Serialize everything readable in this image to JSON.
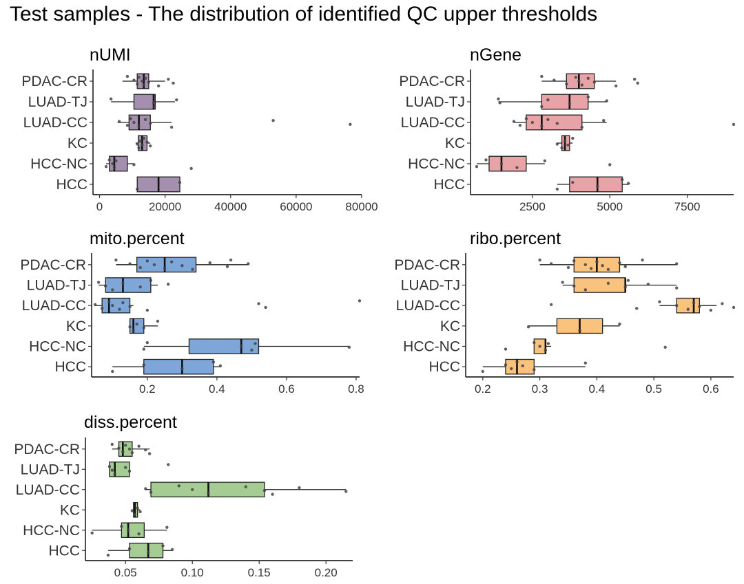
{
  "main_title": "Test samples  -  The distribution of identified QC upper thresholds",
  "categories": [
    "PDAC-CR",
    "LUAD-TJ",
    "LUAD-CC",
    "KC",
    "HCC-NC",
    "HCC"
  ],
  "chart_data": [
    {
      "type": "boxplot",
      "title": "nUMI",
      "color": "#a48fae",
      "xlim": [
        -2000,
        80000
      ],
      "ticks": [
        0,
        20000,
        40000,
        60000,
        80000
      ],
      "tick_labels": [
        "0",
        "20000",
        "40000",
        "60000",
        "80000"
      ],
      "boxes": [
        {
          "category": "PDAC-CR",
          "wmin": 7000,
          "q1": 11500,
          "median": 13500,
          "q3": 15000,
          "wmax": 20000,
          "points": [
            8500,
            10500,
            11500,
            12000,
            13000,
            13500,
            14000,
            15000,
            18000,
            21000,
            22500
          ]
        },
        {
          "category": "LUAD-TJ",
          "wmin": 3500,
          "q1": 10500,
          "median": 16500,
          "q3": 17000,
          "wmax": 23000,
          "points": [
            3500,
            16500,
            16800,
            23500
          ]
        },
        {
          "category": "LUAD-CC",
          "wmin": 5500,
          "q1": 9000,
          "median": 12000,
          "q3": 15500,
          "wmax": 22000,
          "points": [
            6000,
            8500,
            9500,
            10500,
            12000,
            14000,
            15500,
            22000,
            53000,
            76500
          ]
        },
        {
          "category": "KC",
          "wmin": 11000,
          "q1": 11800,
          "median": 13000,
          "q3": 14500,
          "wmax": 15500,
          "points": [
            11500,
            12000,
            12500,
            13000,
            13500,
            14500,
            15500
          ]
        },
        {
          "category": "HCC-NC",
          "wmin": 2000,
          "q1": 3000,
          "median": 4500,
          "q3": 8500,
          "wmax": 10500,
          "points": [
            2000,
            3000,
            4000,
            4500,
            5000,
            10500,
            28000
          ]
        },
        {
          "category": "HCC",
          "wmin": 11500,
          "q1": 11500,
          "median": 18000,
          "q3": 24500,
          "wmax": 24500,
          "points": [
            11500,
            24500
          ]
        }
      ]
    },
    {
      "type": "boxplot",
      "title": "nGene",
      "color": "#e8a3a6",
      "xlim": [
        500,
        9000
      ],
      "ticks": [
        2500,
        5000,
        7500
      ],
      "tick_labels": [
        "2500",
        "5000",
        "7500"
      ],
      "boxes": [
        {
          "category": "PDAC-CR",
          "wmin": 2800,
          "q1": 3600,
          "median": 4000,
          "q3": 4500,
          "wmax": 5200,
          "points": [
            2800,
            3200,
            3600,
            3900,
            4000,
            4100,
            4300,
            4500,
            5200,
            5800,
            5900
          ]
        },
        {
          "category": "LUAD-TJ",
          "wmin": 1400,
          "q1": 2800,
          "median": 3700,
          "q3": 4300,
          "wmax": 4900,
          "points": [
            1400,
            1450,
            2800,
            3000,
            3700,
            4300,
            4900
          ]
        },
        {
          "category": "LUAD-CC",
          "wmin": 1900,
          "q1": 2300,
          "median": 2800,
          "q3": 4100,
          "wmax": 4900,
          "points": [
            1900,
            2100,
            2300,
            2500,
            2800,
            3000,
            3300,
            4100,
            4800,
            9000
          ]
        },
        {
          "category": "KC",
          "wmin": 3300,
          "q1": 3450,
          "median": 3550,
          "q3": 3700,
          "wmax": 3800,
          "points": [
            3300,
            3450,
            3550,
            3650,
            3800
          ]
        },
        {
          "category": "HCC-NC",
          "wmin": 700,
          "q1": 1100,
          "median": 1500,
          "q3": 2300,
          "wmax": 2900,
          "points": [
            700,
            1000,
            1500,
            2000,
            2900,
            5000
          ]
        },
        {
          "category": "HCC",
          "wmin": 3300,
          "q1": 3700,
          "median": 4600,
          "q3": 5400,
          "wmax": 5600,
          "points": [
            3300,
            3800,
            4600,
            5400,
            5600
          ]
        }
      ]
    },
    {
      "type": "boxplot",
      "title": "mito.percent",
      "color": "#7fa6d9",
      "xlim": [
        0.04,
        0.81
      ],
      "ticks": [
        0.2,
        0.4,
        0.6,
        0.8
      ],
      "tick_labels": [
        "0.2",
        "0.4",
        "0.6",
        "0.8"
      ],
      "boxes": [
        {
          "category": "PDAC-CR",
          "wmin": 0.11,
          "q1": 0.17,
          "median": 0.25,
          "q3": 0.34,
          "wmax": 0.49,
          "points": [
            0.11,
            0.15,
            0.18,
            0.2,
            0.22,
            0.25,
            0.27,
            0.3,
            0.33,
            0.38,
            0.43,
            0.44,
            0.49
          ]
        },
        {
          "category": "LUAD-TJ",
          "wmin": 0.06,
          "q1": 0.08,
          "median": 0.13,
          "q3": 0.21,
          "wmax": 0.23,
          "points": [
            0.06,
            0.08,
            0.1,
            0.13,
            0.18,
            0.21,
            0.26
          ]
        },
        {
          "category": "LUAD-CC",
          "wmin": 0.05,
          "q1": 0.07,
          "median": 0.09,
          "q3": 0.15,
          "wmax": 0.16,
          "points": [
            0.05,
            0.07,
            0.09,
            0.1,
            0.12,
            0.13,
            0.15,
            0.2,
            0.52,
            0.54,
            0.81
          ]
        },
        {
          "category": "KC",
          "wmin": 0.15,
          "q1": 0.15,
          "median": 0.16,
          "q3": 0.19,
          "wmax": 0.23,
          "points": [
            0.15,
            0.16,
            0.17,
            0.19,
            0.23
          ]
        },
        {
          "category": "HCC-NC",
          "wmin": 0.19,
          "q1": 0.32,
          "median": 0.47,
          "q3": 0.52,
          "wmax": 0.78,
          "points": [
            0.19,
            0.2,
            0.47,
            0.5,
            0.51,
            0.78
          ]
        },
        {
          "category": "HCC",
          "wmin": 0.1,
          "q1": 0.19,
          "median": 0.3,
          "q3": 0.39,
          "wmax": 0.41,
          "points": [
            0.1,
            0.19,
            0.3,
            0.39,
            0.41
          ]
        }
      ]
    },
    {
      "type": "boxplot",
      "title": "ribo.percent",
      "color": "#f9c27d",
      "xlim": [
        0.17,
        0.64
      ],
      "ticks": [
        0.2,
        0.3,
        0.4,
        0.5,
        0.6
      ],
      "tick_labels": [
        "0.2",
        "0.3",
        "0.4",
        "0.5",
        "0.6"
      ],
      "boxes": [
        {
          "category": "PDAC-CR",
          "wmin": 0.3,
          "q1": 0.36,
          "median": 0.4,
          "q3": 0.44,
          "wmax": 0.54,
          "points": [
            0.3,
            0.32,
            0.35,
            0.36,
            0.38,
            0.39,
            0.4,
            0.41,
            0.42,
            0.44,
            0.45,
            0.48,
            0.54
          ]
        },
        {
          "category": "LUAD-TJ",
          "wmin": 0.34,
          "q1": 0.36,
          "median": 0.45,
          "q3": 0.45,
          "wmax": 0.54,
          "points": [
            0.34,
            0.36,
            0.38,
            0.42,
            0.45,
            0.455,
            0.49,
            0.54
          ]
        },
        {
          "category": "LUAD-CC",
          "wmin": 0.51,
          "q1": 0.54,
          "median": 0.57,
          "q3": 0.58,
          "wmax": 0.61,
          "points": [
            0.32,
            0.47,
            0.51,
            0.54,
            0.56,
            0.57,
            0.58,
            0.6,
            0.62,
            0.64
          ]
        },
        {
          "category": "KC",
          "wmin": 0.28,
          "q1": 0.33,
          "median": 0.37,
          "q3": 0.41,
          "wmax": 0.44,
          "points": [
            0.28,
            0.37,
            0.44
          ]
        },
        {
          "category": "HCC-NC",
          "wmin": 0.29,
          "q1": 0.29,
          "median": 0.31,
          "q3": 0.31,
          "wmax": 0.32,
          "points": [
            0.24,
            0.29,
            0.3,
            0.31,
            0.315,
            0.52
          ]
        },
        {
          "category": "HCC",
          "wmin": 0.2,
          "q1": 0.24,
          "median": 0.26,
          "q3": 0.29,
          "wmax": 0.38,
          "points": [
            0.2,
            0.24,
            0.25,
            0.26,
            0.27,
            0.29,
            0.38
          ]
        }
      ]
    },
    {
      "type": "boxplot",
      "title": "diss.percent",
      "color": "#a4cc93",
      "xlim": [
        0.02,
        0.22
      ],
      "ticks": [
        0.05,
        0.1,
        0.15,
        0.2
      ],
      "tick_labels": [
        "0.05",
        "0.10",
        "0.15",
        "0.20"
      ],
      "boxes": [
        {
          "category": "PDAC-CR",
          "wmin": 0.04,
          "q1": 0.045,
          "median": 0.048,
          "q3": 0.055,
          "wmax": 0.068,
          "points": [
            0.04,
            0.045,
            0.048,
            0.05,
            0.053,
            0.055,
            0.06,
            0.065,
            0.068
          ]
        },
        {
          "category": "LUAD-TJ",
          "wmin": 0.038,
          "q1": 0.038,
          "median": 0.042,
          "q3": 0.053,
          "wmax": 0.053,
          "points": [
            0.038,
            0.04,
            0.042,
            0.05,
            0.053,
            0.082
          ]
        },
        {
          "category": "LUAD-CC",
          "wmin": 0.065,
          "q1": 0.069,
          "median": 0.112,
          "q3": 0.154,
          "wmax": 0.215,
          "points": [
            0.065,
            0.069,
            0.09,
            0.1,
            0.112,
            0.14,
            0.154,
            0.16,
            0.18,
            0.215
          ]
        },
        {
          "category": "KC",
          "wmin": 0.055,
          "q1": 0.056,
          "median": 0.057,
          "q3": 0.059,
          "wmax": 0.061,
          "points": [
            0.055,
            0.057,
            0.059,
            0.061
          ]
        },
        {
          "category": "HCC-NC",
          "wmin": 0.025,
          "q1": 0.047,
          "median": 0.052,
          "q3": 0.064,
          "wmax": 0.081,
          "points": [
            0.025,
            0.047,
            0.052,
            0.06,
            0.081
          ]
        },
        {
          "category": "HCC",
          "wmin": 0.037,
          "q1": 0.053,
          "median": 0.067,
          "q3": 0.078,
          "wmax": 0.085,
          "points": [
            0.037,
            0.053,
            0.067,
            0.078,
            0.085
          ]
        }
      ]
    }
  ]
}
